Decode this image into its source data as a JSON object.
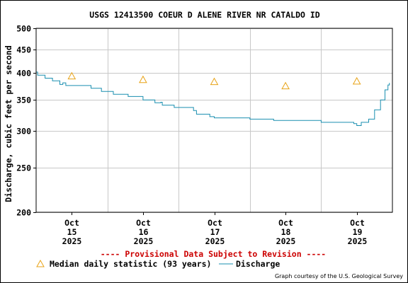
{
  "chart_data": {
    "type": "line",
    "title": "USGS 12413500 COEUR D ALENE RIVER NR CATALDO ID",
    "ylabel": "Discharge, cubic feet per second",
    "xlabel": "",
    "y_scale": "log",
    "ylim": [
      200,
      500
    ],
    "y_ticks": [
      "500",
      "450",
      "400",
      "350",
      "300",
      "250",
      "200"
    ],
    "y_tick_values": [
      500,
      450,
      400,
      350,
      300,
      250,
      200
    ],
    "xlim": [
      "2025-10-14T12:00",
      "2025-10-19T12:00"
    ],
    "x_ticks": [
      {
        "date": "2025-10-15T00:00",
        "month": "Oct",
        "day": "15",
        "year": "2025"
      },
      {
        "date": "2025-10-16T00:00",
        "month": "Oct",
        "day": "16",
        "year": "2025"
      },
      {
        "date": "2025-10-17T00:00",
        "month": "Oct",
        "day": "17",
        "year": "2025"
      },
      {
        "date": "2025-10-18T00:00",
        "month": "Oct",
        "day": "18",
        "year": "2025"
      },
      {
        "date": "2025-10-19T00:00",
        "month": "Oct",
        "day": "19",
        "year": "2025"
      }
    ],
    "grid": true,
    "series": [
      {
        "name": "Median daily statistic (93 years)",
        "kind": "marker",
        "color": "#e8a317",
        "points": [
          {
            "x": "2025-10-15T00:00",
            "y": 394
          },
          {
            "x": "2025-10-16T00:00",
            "y": 387
          },
          {
            "x": "2025-10-17T00:00",
            "y": 383
          },
          {
            "x": "2025-10-18T00:00",
            "y": 375
          },
          {
            "x": "2025-10-19T00:00",
            "y": 384
          }
        ]
      },
      {
        "name": "Discharge",
        "kind": "line",
        "color": "#1a8fb0",
        "points": [
          {
            "x": "2025-10-14T12:00",
            "y": 402
          },
          {
            "x": "2025-10-14T12:30",
            "y": 396
          },
          {
            "x": "2025-10-14T14:00",
            "y": 396
          },
          {
            "x": "2025-10-14T15:00",
            "y": 390
          },
          {
            "x": "2025-10-14T17:30",
            "y": 385
          },
          {
            "x": "2025-10-14T20:00",
            "y": 378
          },
          {
            "x": "2025-10-14T21:00",
            "y": 381
          },
          {
            "x": "2025-10-14T22:00",
            "y": 376
          },
          {
            "x": "2025-10-15T06:30",
            "y": 371
          },
          {
            "x": "2025-10-15T10:00",
            "y": 365
          },
          {
            "x": "2025-10-15T14:00",
            "y": 360
          },
          {
            "x": "2025-10-15T19:00",
            "y": 356
          },
          {
            "x": "2025-10-16T00:00",
            "y": 350
          },
          {
            "x": "2025-10-16T04:00",
            "y": 345
          },
          {
            "x": "2025-10-16T06:00",
            "y": 346
          },
          {
            "x": "2025-10-16T06:30",
            "y": 341
          },
          {
            "x": "2025-10-16T10:30",
            "y": 337
          },
          {
            "x": "2025-10-16T17:00",
            "y": 332
          },
          {
            "x": "2025-10-16T18:00",
            "y": 326
          },
          {
            "x": "2025-10-16T22:30",
            "y": 322
          },
          {
            "x": "2025-10-17T00:00",
            "y": 320
          },
          {
            "x": "2025-10-17T12:00",
            "y": 318
          },
          {
            "x": "2025-10-17T20:00",
            "y": 316
          },
          {
            "x": "2025-10-18T12:00",
            "y": 313
          },
          {
            "x": "2025-10-18T23:00",
            "y": 311
          },
          {
            "x": "2025-10-19T00:00",
            "y": 308
          },
          {
            "x": "2025-10-19T01:30",
            "y": 313
          },
          {
            "x": "2025-10-19T04:00",
            "y": 318
          },
          {
            "x": "2025-10-19T06:00",
            "y": 333
          },
          {
            "x": "2025-10-19T08:00",
            "y": 350
          },
          {
            "x": "2025-10-19T09:30",
            "y": 368
          },
          {
            "x": "2025-10-19T10:30",
            "y": 377
          },
          {
            "x": "2025-10-19T11:00",
            "y": 381
          }
        ]
      }
    ],
    "legend": {
      "placement": "bottom",
      "median_label": "Median daily statistic (93 years)",
      "discharge_label": "Discharge"
    },
    "annotation": "---- Provisional Data Subject to Revision ----",
    "credit": "Graph courtesy of the U.S. Geological Survey"
  },
  "colors": {
    "axis": "#000000",
    "grid": "#c8c8c8",
    "annotation": "#cc0000",
    "median_marker": "#e8a317",
    "discharge_line": "#1a8fb0"
  }
}
